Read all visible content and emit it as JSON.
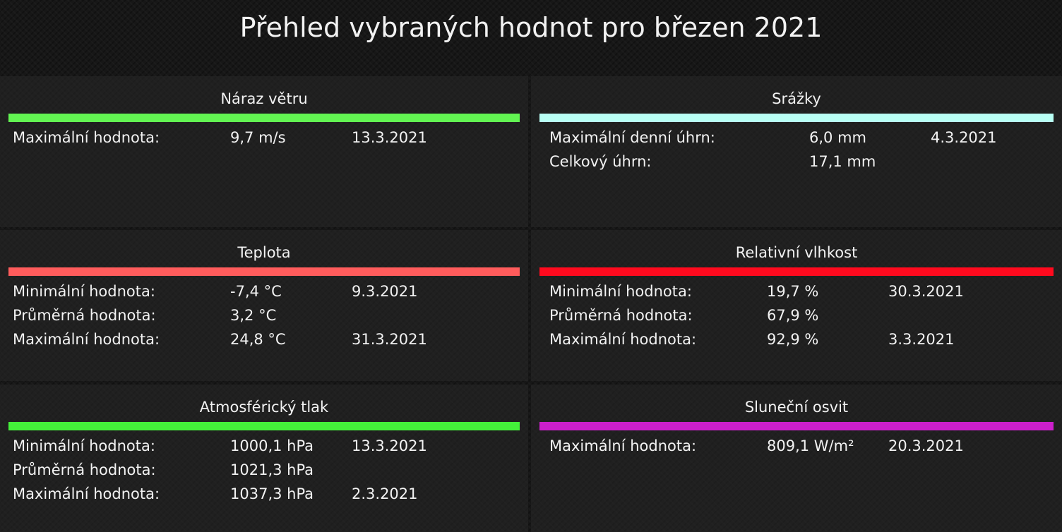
{
  "header": {
    "title": "Přehled vybraných hodnot pro březen 2021"
  },
  "panels": [
    {
      "title": "Náraz větru",
      "color": "#62f552",
      "rows": [
        {
          "label": "Maximální hodnota:",
          "value": "9,7 m/s",
          "date": "13.3.2021"
        }
      ]
    },
    {
      "title": "Srážky",
      "color": "#b8fff4",
      "rows": [
        {
          "label": "Maximální denní úhrn:",
          "value": "6,0 mm",
          "date": "4.3.2021"
        },
        {
          "label": "Celkový úhrn:",
          "value": "17,1 mm"
        }
      ]
    },
    {
      "title": "Teplota",
      "color": "#ff5c5c",
      "rows": [
        {
          "label": "Minimální hodnota:",
          "value": "-7,4 °C",
          "date": "9.3.2021"
        },
        {
          "label": "Průměrná hodnota:",
          "value": "3,2 °C"
        },
        {
          "label": "Maximální hodnota:",
          "value": "24,8 °C",
          "date": "31.3.2021"
        }
      ]
    },
    {
      "title": "Relativní vlhkost",
      "color": "#ff0a1e",
      "rows": [
        {
          "label": "Minimální hodnota:",
          "value": "19,7 %",
          "date": "30.3.2021"
        },
        {
          "label": "Průměrná hodnota:",
          "value": "67,9 %"
        },
        {
          "label": "Maximální hodnota:",
          "value": "92,9 %",
          "date": "3.3.2021"
        }
      ]
    },
    {
      "title": "Atmosférický tlak",
      "color": "#44f03a",
      "rows": [
        {
          "label": "Minimální hodnota:",
          "value": "1000,1 hPa",
          "date": "13.3.2021"
        },
        {
          "label": "Průměrná hodnota:",
          "value": "1021,3 hPa"
        },
        {
          "label": "Maximální hodnota:",
          "value": "1037,3 hPa",
          "date": "2.3.2021"
        }
      ]
    },
    {
      "title": "Sluneční osvit",
      "color": "#cc1fcc",
      "rows": [
        {
          "label": "Maximální hodnota:",
          "value": "809,1 W/m²",
          "date": "20.3.2021"
        }
      ]
    }
  ]
}
